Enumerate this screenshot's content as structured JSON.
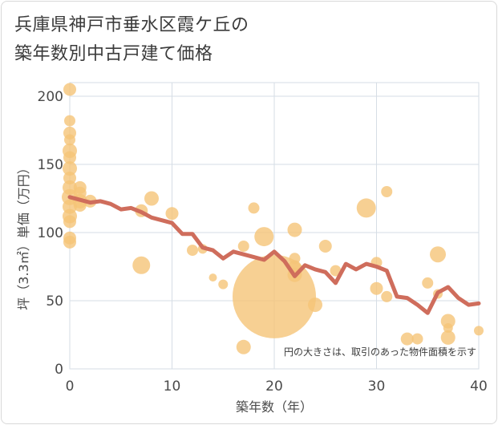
{
  "title_lines": [
    "兵庫県神戸市垂水区霞ケ丘の",
    "築年数別中古戸建て価格"
  ],
  "chart_data": {
    "type": "scatter",
    "title": "兵庫県神戸市垂水区霞ケ丘の築年数別中古戸建て価格",
    "xlabel": "築年数（年）",
    "ylabel": "坪（3.3㎡）単価（万円）",
    "xlim": [
      0,
      40
    ],
    "ylim": [
      0,
      210
    ],
    "xticks": [
      0,
      10,
      20,
      30,
      40
    ],
    "yticks": [
      0,
      50,
      100,
      150,
      200
    ],
    "grid": true,
    "annotation": "円の大きさは、取引のあった物件面積を示す",
    "colors": {
      "bubble": "#f5c478",
      "line": "#cf6d5c",
      "grid": "#d6dde5"
    },
    "bubbles": [
      {
        "x": 0,
        "y": 205,
        "size": 8
      },
      {
        "x": 0,
        "y": 182,
        "size": 7
      },
      {
        "x": 0,
        "y": 173,
        "size": 8
      },
      {
        "x": 0,
        "y": 168,
        "size": 7
      },
      {
        "x": 0,
        "y": 160,
        "size": 9
      },
      {
        "x": 0,
        "y": 155,
        "size": 8
      },
      {
        "x": 0,
        "y": 147,
        "size": 9
      },
      {
        "x": 0,
        "y": 140,
        "size": 8
      },
      {
        "x": 0,
        "y": 133,
        "size": 9
      },
      {
        "x": 0,
        "y": 126,
        "size": 10
      },
      {
        "x": 0,
        "y": 119,
        "size": 9
      },
      {
        "x": 0,
        "y": 112,
        "size": 9
      },
      {
        "x": 0,
        "y": 108,
        "size": 8
      },
      {
        "x": 0,
        "y": 96,
        "size": 8
      },
      {
        "x": 0,
        "y": 93,
        "size": 8
      },
      {
        "x": 1,
        "y": 133,
        "size": 8
      },
      {
        "x": 1,
        "y": 129,
        "size": 8
      },
      {
        "x": 1,
        "y": 123,
        "size": 9
      },
      {
        "x": 1,
        "y": 120,
        "size": 8
      },
      {
        "x": 2,
        "y": 123,
        "size": 8
      },
      {
        "x": 7,
        "y": 116,
        "size": 8
      },
      {
        "x": 7,
        "y": 76,
        "size": 11
      },
      {
        "x": 8,
        "y": 125,
        "size": 9
      },
      {
        "x": 10,
        "y": 114,
        "size": 8
      },
      {
        "x": 12,
        "y": 87,
        "size": 7
      },
      {
        "x": 13,
        "y": 88,
        "size": 6
      },
      {
        "x": 14,
        "y": 67,
        "size": 5
      },
      {
        "x": 15,
        "y": 62,
        "size": 6
      },
      {
        "x": 17,
        "y": 90,
        "size": 7
      },
      {
        "x": 17,
        "y": 16,
        "size": 9
      },
      {
        "x": 18,
        "y": 118,
        "size": 7
      },
      {
        "x": 19,
        "y": 97,
        "size": 12
      },
      {
        "x": 20,
        "y": 53,
        "size": 52
      },
      {
        "x": 22,
        "y": 102,
        "size": 9
      },
      {
        "x": 22,
        "y": 81,
        "size": 7
      },
      {
        "x": 22,
        "y": 75,
        "size": 8
      },
      {
        "x": 22,
        "y": 69,
        "size": 9
      },
      {
        "x": 24,
        "y": 47,
        "size": 9
      },
      {
        "x": 25,
        "y": 90,
        "size": 8
      },
      {
        "x": 26,
        "y": 72,
        "size": 7
      },
      {
        "x": 29,
        "y": 118,
        "size": 12
      },
      {
        "x": 30,
        "y": 78,
        "size": 7
      },
      {
        "x": 30,
        "y": 59,
        "size": 8
      },
      {
        "x": 31,
        "y": 130,
        "size": 7
      },
      {
        "x": 31,
        "y": 53,
        "size": 7
      },
      {
        "x": 33,
        "y": 22,
        "size": 8
      },
      {
        "x": 34,
        "y": 22,
        "size": 7
      },
      {
        "x": 35,
        "y": 63,
        "size": 7
      },
      {
        "x": 36,
        "y": 84,
        "size": 10
      },
      {
        "x": 36,
        "y": 55,
        "size": 6
      },
      {
        "x": 37,
        "y": 35,
        "size": 9
      },
      {
        "x": 37,
        "y": 30,
        "size": 6
      },
      {
        "x": 37,
        "y": 23,
        "size": 9
      },
      {
        "x": 40,
        "y": 28,
        "size": 6
      }
    ],
    "line": {
      "x": [
        0,
        1,
        2,
        3,
        4,
        5,
        6,
        7,
        8,
        9,
        10,
        11,
        12,
        13,
        14,
        15,
        16,
        17,
        18,
        19,
        20,
        21,
        22,
        23,
        24,
        25,
        26,
        27,
        28,
        29,
        30,
        31,
        32,
        33,
        34,
        35,
        36,
        37,
        38,
        39,
        40
      ],
      "y": [
        126,
        124,
        122,
        123,
        121,
        117,
        118,
        115,
        111,
        109,
        107,
        99,
        99,
        89,
        87,
        81,
        86,
        84,
        82,
        80,
        86,
        79,
        68,
        76,
        73,
        71,
        63,
        77,
        73,
        77,
        75,
        72,
        53,
        52,
        47,
        41,
        56,
        60,
        52,
        47,
        48
      ]
    }
  }
}
